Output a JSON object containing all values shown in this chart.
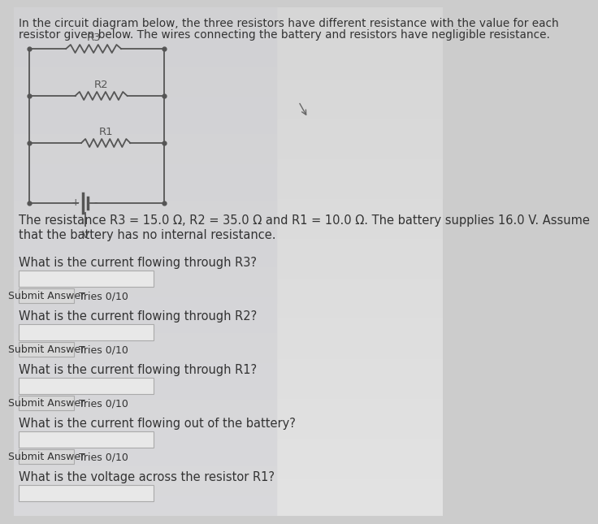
{
  "title_line1": "In the circuit diagram below, the three resistors have different resistance with the value for each",
  "title_line2": "resistor given below. The wires connecting the battery and resistors have negligible resistance.",
  "desc_line1": "The resistance R3 = 15.0 Ω, R2 = 35.0 Ω and R1 = 10.0 Ω. The battery supplies 16.0 V. Assume",
  "desc_line2": "that the battery has no internal resistance.",
  "questions": [
    "What is the current flowing through R3?",
    "What is the current flowing through R2?",
    "What is the current flowing through R1?",
    "What is the current flowing out of the battery?",
    "What is the voltage across the resistor R1?"
  ],
  "bg_top": "#d0d0d8",
  "bg_bottom": "#e0ddd8",
  "text_color": "#333333",
  "circuit_color": "#555555",
  "input_bg": "#e8e8e8",
  "input_edge": "#aaaaaa",
  "button_bg": "#d8d8d8",
  "button_edge": "#aaaaaa",
  "font_size_title": 9.8,
  "font_size_body": 10.5,
  "font_size_button": 9.0,
  "font_size_circuit": 9.5
}
